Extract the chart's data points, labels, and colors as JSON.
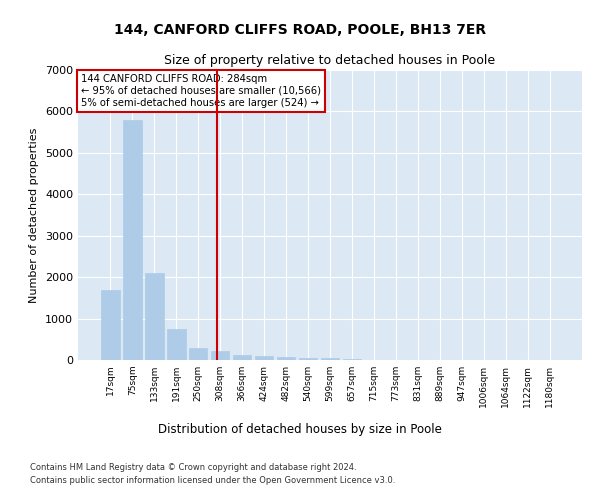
{
  "title_line1": "144, CANFORD CLIFFS ROAD, POOLE, BH13 7ER",
  "title_line2": "Size of property relative to detached houses in Poole",
  "xlabel": "Distribution of detached houses by size in Poole",
  "ylabel": "Number of detached properties",
  "bar_color": "#aecce8",
  "bar_edge_color": "#aecce8",
  "vline_color": "#cc0000",
  "annotation_text": "144 CANFORD CLIFFS ROAD: 284sqm\n← 95% of detached houses are smaller (10,566)\n5% of semi-detached houses are larger (524) →",
  "annotation_fill": "white",
  "plot_bg_color": "#dce9f5",
  "footer_line1": "Contains HM Land Registry data © Crown copyright and database right 2024.",
  "footer_line2": "Contains public sector information licensed under the Open Government Licence v3.0.",
  "categories": [
    "17sqm",
    "75sqm",
    "133sqm",
    "191sqm",
    "250sqm",
    "308sqm",
    "366sqm",
    "424sqm",
    "482sqm",
    "540sqm",
    "599sqm",
    "657sqm",
    "715sqm",
    "773sqm",
    "831sqm",
    "889sqm",
    "947sqm",
    "1006sqm",
    "1064sqm",
    "1122sqm",
    "1180sqm"
  ],
  "values": [
    1700,
    5800,
    2100,
    750,
    300,
    210,
    130,
    100,
    70,
    55,
    40,
    35,
    0,
    0,
    0,
    0,
    0,
    0,
    0,
    0,
    0
  ],
  "vline_pos": 4.85,
  "ylim": [
    0,
    7000
  ],
  "yticks": [
    0,
    1000,
    2000,
    3000,
    4000,
    5000,
    6000,
    7000
  ]
}
